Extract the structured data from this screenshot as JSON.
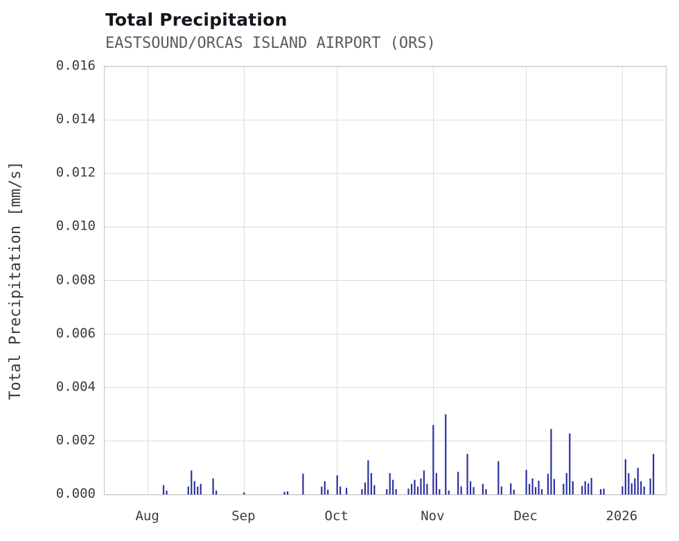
{
  "chart_data": {
    "type": "bar",
    "title": "Total Precipitation",
    "subtitle": "EASTSOUND/ORCAS ISLAND AIRPORT (ORS)",
    "xlabel": "",
    "ylabel": "Total Precipitation [mm/s]",
    "ylim": [
      0,
      0.016
    ],
    "yticks": [
      0,
      0.002,
      0.004,
      0.006,
      0.008,
      0.01,
      0.012,
      0.014,
      0.016
    ],
    "x_range": [
      "2025-07-18",
      "2026-01-15"
    ],
    "xticks": [
      {
        "label": "Aug",
        "date": "2025-08-01"
      },
      {
        "label": "Sep",
        "date": "2025-09-01"
      },
      {
        "label": "Oct",
        "date": "2025-10-01"
      },
      {
        "label": "Nov",
        "date": "2025-11-01"
      },
      {
        "label": "Dec",
        "date": "2025-12-01"
      },
      {
        "label": "2026",
        "date": "2026-01-01"
      }
    ],
    "grid": true,
    "legend": "none",
    "bar_color": "#2a309f",
    "grid_color": "#dadada",
    "axis_color": "#c4c4c4",
    "series_name": "Total Precipitation [mm/s]",
    "points": [
      [
        "2025-08-06",
        0.00035
      ],
      [
        "2025-08-07",
        0.00015
      ],
      [
        "2025-08-14",
        0.0003
      ],
      [
        "2025-08-15",
        0.0009
      ],
      [
        "2025-08-16",
        0.0005
      ],
      [
        "2025-08-17",
        0.0003
      ],
      [
        "2025-08-18",
        0.0004
      ],
      [
        "2025-08-22",
        0.0006
      ],
      [
        "2025-08-23",
        0.00015
      ],
      [
        "2025-09-01",
        8e-05
      ],
      [
        "2025-09-14",
        0.0001
      ],
      [
        "2025-09-15",
        0.00012
      ],
      [
        "2025-09-20",
        0.00078
      ],
      [
        "2025-09-26",
        0.0003
      ],
      [
        "2025-09-27",
        0.0005
      ],
      [
        "2025-09-28",
        0.00018
      ],
      [
        "2025-10-01",
        0.00072
      ],
      [
        "2025-10-02",
        0.0003
      ],
      [
        "2025-10-04",
        0.00025
      ],
      [
        "2025-10-09",
        0.0002
      ],
      [
        "2025-10-10",
        0.00045
      ],
      [
        "2025-10-11",
        0.00128
      ],
      [
        "2025-10-12",
        0.0008
      ],
      [
        "2025-10-13",
        0.00035
      ],
      [
        "2025-10-17",
        0.0002
      ],
      [
        "2025-10-18",
        0.0008
      ],
      [
        "2025-10-19",
        0.00055
      ],
      [
        "2025-10-20",
        0.0002
      ],
      [
        "2025-10-24",
        0.00022
      ],
      [
        "2025-10-25",
        0.0004
      ],
      [
        "2025-10-26",
        0.00055
      ],
      [
        "2025-10-27",
        0.0003
      ],
      [
        "2025-10-28",
        0.0006
      ],
      [
        "2025-10-29",
        0.0009
      ],
      [
        "2025-10-30",
        0.0004
      ],
      [
        "2025-11-01",
        0.0026
      ],
      [
        "2025-11-02",
        0.0008
      ],
      [
        "2025-11-03",
        0.0002
      ],
      [
        "2025-11-05",
        0.003
      ],
      [
        "2025-11-06",
        0.00015
      ],
      [
        "2025-11-09",
        0.00085
      ],
      [
        "2025-11-10",
        0.0003
      ],
      [
        "2025-11-12",
        0.00152
      ],
      [
        "2025-11-13",
        0.0005
      ],
      [
        "2025-11-14",
        0.00028
      ],
      [
        "2025-11-17",
        0.0004
      ],
      [
        "2025-11-18",
        0.0002
      ],
      [
        "2025-11-22",
        0.00125
      ],
      [
        "2025-11-23",
        0.0003
      ],
      [
        "2025-11-26",
        0.00042
      ],
      [
        "2025-11-27",
        0.00018
      ],
      [
        "2025-12-01",
        0.00092
      ],
      [
        "2025-12-02",
        0.0004
      ],
      [
        "2025-12-03",
        0.0006
      ],
      [
        "2025-12-04",
        0.00028
      ],
      [
        "2025-12-05",
        0.00052
      ],
      [
        "2025-12-06",
        0.0002
      ],
      [
        "2025-12-08",
        0.00078
      ],
      [
        "2025-12-09",
        0.00245
      ],
      [
        "2025-12-10",
        0.00058
      ],
      [
        "2025-12-13",
        0.0004
      ],
      [
        "2025-12-14",
        0.0008
      ],
      [
        "2025-12-15",
        0.00228
      ],
      [
        "2025-12-16",
        0.0005
      ],
      [
        "2025-12-19",
        0.00032
      ],
      [
        "2025-12-20",
        0.0005
      ],
      [
        "2025-12-21",
        0.00042
      ],
      [
        "2025-12-22",
        0.00062
      ],
      [
        "2025-12-25",
        0.0002
      ],
      [
        "2025-12-26",
        0.00022
      ],
      [
        "2026-01-01",
        0.0003
      ],
      [
        "2026-01-02",
        0.00132
      ],
      [
        "2026-01-03",
        0.0008
      ],
      [
        "2026-01-04",
        0.00042
      ],
      [
        "2026-01-05",
        0.0006
      ],
      [
        "2026-01-06",
        0.001
      ],
      [
        "2026-01-07",
        0.0005
      ],
      [
        "2026-01-08",
        0.0003
      ],
      [
        "2026-01-10",
        0.0006
      ],
      [
        "2026-01-11",
        0.00152
      ]
    ]
  }
}
